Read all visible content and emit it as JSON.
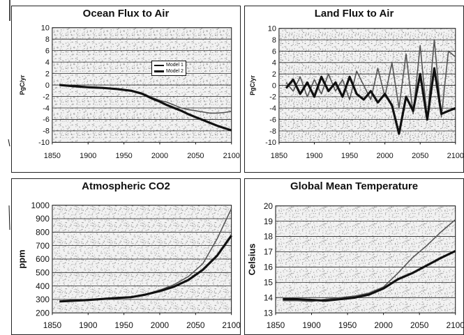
{
  "chart_data": [
    {
      "type": "line",
      "title": "Ocean Flux to Air",
      "ylabel": "PgC/yr",
      "xlabel": "",
      "xlim": [
        1850,
        2100
      ],
      "ylim": [
        -10,
        10
      ],
      "xticks": [
        1850,
        1900,
        1950,
        2000,
        2050,
        2100
      ],
      "yticks": [
        -10,
        -8,
        -6,
        -4,
        -2,
        0,
        2,
        4,
        6,
        8,
        10
      ],
      "grid": true,
      "legend": "center-right",
      "series": [
        {
          "name": "Model 1",
          "x": [
            1860,
            1880,
            1900,
            1920,
            1940,
            1960,
            1975,
            1990,
            2000,
            2010,
            2020,
            2030,
            2040,
            2050,
            2060,
            2070,
            2080,
            2090,
            2100
          ],
          "y": [
            0.1,
            -0.2,
            -0.4,
            -0.5,
            -0.7,
            -0.9,
            -1.4,
            -2.2,
            -2.7,
            -3.0,
            -3.5,
            -4.0,
            -4.3,
            -4.5,
            -4.7,
            -4.9,
            -4.9,
            -4.8,
            -4.6
          ]
        },
        {
          "name": "Model 2",
          "x": [
            1860,
            1880,
            1900,
            1920,
            1940,
            1960,
            1975,
            1990,
            2000,
            2010,
            2020,
            2030,
            2040,
            2050,
            2060,
            2070,
            2080,
            2090,
            2100
          ],
          "y": [
            0.0,
            -0.2,
            -0.4,
            -0.5,
            -0.7,
            -1.0,
            -1.5,
            -2.4,
            -2.9,
            -3.5,
            -4.0,
            -4.5,
            -5.1,
            -5.6,
            -6.1,
            -6.6,
            -7.1,
            -7.5,
            -7.9
          ]
        }
      ]
    },
    {
      "type": "line",
      "title": "Land Flux to Air",
      "ylabel": "PgC/yr",
      "xlabel": "",
      "xlim": [
        1850,
        2100
      ],
      "ylim": [
        -10,
        10
      ],
      "xticks": [
        1850,
        1900,
        1950,
        2000,
        2050,
        2100
      ],
      "yticks": [
        -10,
        -8,
        -6,
        -4,
        -2,
        0,
        2,
        4,
        6,
        8,
        10
      ],
      "grid": true,
      "series": [
        {
          "x": [
            1860,
            1870,
            1880,
            1890,
            1900,
            1910,
            1920,
            1930,
            1940,
            1950,
            1960,
            1970,
            1980,
            1990,
            2000,
            2010,
            2020,
            2030,
            2040,
            2050,
            2060,
            2070,
            2080,
            2090,
            2100
          ],
          "y": [
            0.5,
            -1.0,
            1.5,
            -2.0,
            1.0,
            -1.5,
            2.0,
            -1.0,
            1.0,
            -2.5,
            2.5,
            0.0,
            -2.5,
            3.0,
            -2.0,
            4.0,
            -4.0,
            5.5,
            -5.0,
            7.0,
            -6.0,
            8.0,
            -5.5,
            6.0,
            5.0
          ]
        },
        {
          "x": [
            1860,
            1870,
            1880,
            1890,
            1900,
            1910,
            1920,
            1930,
            1940,
            1950,
            1960,
            1970,
            1980,
            1990,
            2000,
            2010,
            2020,
            2030,
            2040,
            2050,
            2060,
            2070,
            2080,
            2090,
            2100
          ],
          "y": [
            -0.5,
            1.0,
            -1.5,
            0.5,
            -2.0,
            1.5,
            -1.0,
            0.5,
            -2.0,
            1.5,
            -1.5,
            -2.5,
            -1.0,
            -3.0,
            -1.5,
            -3.5,
            -8.5,
            -2.0,
            -4.5,
            2.0,
            -6.0,
            3.0,
            -5.0,
            -4.5,
            -4.0
          ]
        }
      ]
    },
    {
      "type": "line",
      "title": "Atmospheric CO2",
      "ylabel": "ppm",
      "xlabel": "",
      "xlim": [
        1850,
        2100
      ],
      "ylim": [
        200,
        1000
      ],
      "xticks": [
        1850,
        1900,
        1950,
        2000,
        2050,
        2100
      ],
      "yticks": [
        200,
        300,
        400,
        500,
        600,
        700,
        800,
        900,
        1000
      ],
      "grid": true,
      "series": [
        {
          "x": [
            1860,
            1880,
            1900,
            1920,
            1940,
            1960,
            1980,
            2000,
            2020,
            2040,
            2060,
            2080,
            2100
          ],
          "y": [
            285,
            290,
            296,
            303,
            311,
            317,
            338,
            369,
            410,
            470,
            565,
            750,
            975
          ]
        },
        {
          "x": [
            1860,
            1880,
            1900,
            1920,
            1940,
            1960,
            1980,
            2000,
            2020,
            2040,
            2060,
            2080,
            2100
          ],
          "y": [
            285,
            290,
            296,
            303,
            311,
            317,
            336,
            362,
            395,
            445,
            520,
            625,
            775
          ]
        }
      ]
    },
    {
      "type": "line",
      "title": "Global Mean Temperature",
      "ylabel": "Celsius",
      "xlabel": "",
      "xlim": [
        1850,
        2100
      ],
      "ylim": [
        13,
        20
      ],
      "xticks": [
        1850,
        1900,
        1950,
        2000,
        2050,
        2100
      ],
      "yticks": [
        13,
        14,
        15,
        16,
        17,
        18,
        19,
        20
      ],
      "grid": true,
      "series": [
        {
          "x": [
            1860,
            1880,
            1900,
            1920,
            1940,
            1960,
            1980,
            2000,
            2020,
            2040,
            2060,
            2080,
            2100
          ],
          "y": [
            13.8,
            13.8,
            13.75,
            13.9,
            14.0,
            14.1,
            14.3,
            14.7,
            15.6,
            16.6,
            17.4,
            18.3,
            19.1
          ]
        },
        {
          "x": [
            1860,
            1880,
            1900,
            1920,
            1940,
            1960,
            1980,
            2000,
            2020,
            2040,
            2060,
            2080,
            2100
          ],
          "y": [
            13.9,
            13.9,
            13.85,
            13.8,
            13.9,
            14.0,
            14.2,
            14.6,
            15.2,
            15.6,
            16.1,
            16.6,
            17.05
          ]
        }
      ]
    }
  ]
}
